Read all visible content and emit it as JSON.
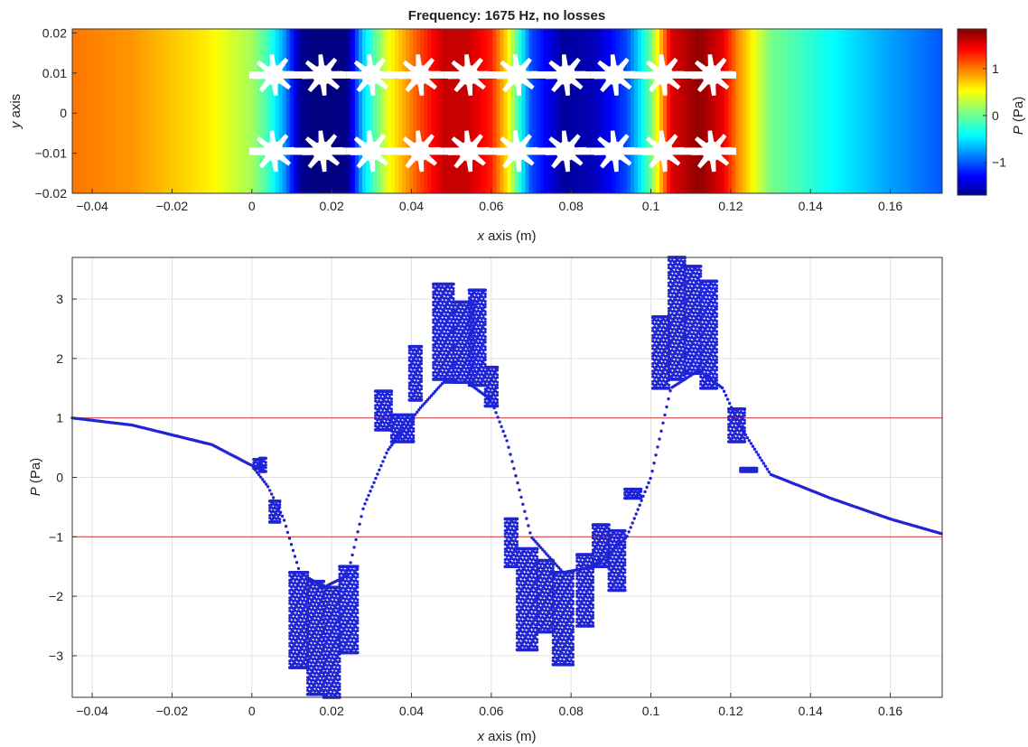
{
  "chart_data": [
    {
      "type": "heatmap",
      "title": "Frequency: 1675 Hz, no losses",
      "xlabel_var": "x",
      "xlabel_rest": " axis (m)",
      "ylabel_var": "y",
      "ylabel_rest": " axis",
      "xlim": [
        -0.045,
        0.173
      ],
      "ylim": [
        -0.02,
        0.021
      ],
      "xticks": [
        -0.04,
        -0.02,
        0,
        0.02,
        0.04,
        0.06,
        0.08,
        0.1,
        0.12,
        0.14,
        0.16
      ],
      "xtick_labels": [
        "−0.04",
        "−0.02",
        "0",
        "0.02",
        "0.04",
        "0.06",
        "0.08",
        "0.1",
        "0.12",
        "0.14",
        "0.16"
      ],
      "yticks": [
        -0.02,
        -0.01,
        0,
        0.01,
        0.02
      ],
      "ytick_labels": [
        "−0.02",
        "−0.01",
        "0",
        "0.01",
        "0.02"
      ],
      "colorbar": {
        "label_var": "P",
        "label_rest": " (Pa)",
        "range": [
          -1.7,
          1.85
        ],
        "ticks": [
          -1,
          0,
          1
        ],
        "tick_labels": [
          "−1",
          "0",
          "1"
        ],
        "colormap": "jet"
      },
      "field": {
        "scatterer_region_x": [
          0,
          0.128
        ],
        "scatterer_centers_x": [
          0.0055,
          0.0177,
          0.0299,
          0.0421,
          0.0543,
          0.0665,
          0.0787,
          0.0909,
          0.1031,
          0.1153
        ],
        "scatterer_centers_y": [
          0.0095,
          -0.0095
        ],
        "cell_mean_pressure": [
          0.1,
          -1.8,
          -1.9,
          0.9,
          1.7,
          1.6,
          -1.6,
          -1.5,
          1.6,
          1.8
        ]
      }
    },
    {
      "type": "scatter",
      "xlabel_var": "x",
      "xlabel_rest": " axis (m)",
      "ylabel_var": "P",
      "ylabel_rest": " (Pa)",
      "xlim": [
        -0.045,
        0.173
      ],
      "ylim": [
        -3.7,
        3.7
      ],
      "xticks": [
        -0.04,
        -0.02,
        0,
        0.02,
        0.04,
        0.06,
        0.08,
        0.1,
        0.12,
        0.14,
        0.16
      ],
      "xtick_labels": [
        "−0.04",
        "−0.02",
        "0",
        "0.02",
        "0.04",
        "0.06",
        "0.08",
        "0.1",
        "0.12",
        "0.14",
        "0.16"
      ],
      "yticks": [
        -3,
        -2,
        -1,
        0,
        1,
        2,
        3
      ],
      "ytick_labels": [
        "−3",
        "−2",
        "−1",
        "0",
        "1",
        "2",
        "3"
      ],
      "grid": true,
      "reference_lines": [
        {
          "y": 1,
          "color": "#d24b4b"
        },
        {
          "y": -1,
          "color": "#d24b4b"
        }
      ],
      "marker_color": "#1f24d6",
      "envelope": {
        "x": [
          -0.045,
          -0.03,
          -0.01,
          0.0,
          0.004,
          0.008,
          0.012,
          0.018,
          0.024,
          0.028,
          0.034,
          0.042,
          0.048,
          0.054,
          0.06,
          0.064,
          0.07,
          0.078,
          0.086,
          0.094,
          0.1,
          0.105,
          0.112,
          0.118,
          0.122,
          0.13,
          0.145,
          0.16,
          0.173
        ],
        "y": [
          1.0,
          0.88,
          0.55,
          0.2,
          -0.15,
          -0.7,
          -1.6,
          -1.85,
          -1.65,
          -0.5,
          0.45,
          1.15,
          1.6,
          1.6,
          1.3,
          0.6,
          -1.0,
          -1.6,
          -1.5,
          -1.0,
          0.0,
          1.5,
          1.8,
          1.5,
          0.9,
          0.05,
          -0.35,
          -0.7,
          -0.95
        ]
      },
      "point_clusters": [
        {
          "x": [
            0.0005,
            0.0025
          ],
          "y": [
            0.15,
            0.3
          ]
        },
        {
          "x": [
            0.002,
            0.0035
          ],
          "y": [
            0.1,
            0.32
          ]
        },
        {
          "x": [
            0.0045,
            0.007
          ],
          "y": [
            -0.75,
            -0.4
          ]
        },
        {
          "x": [
            0.0095,
            0.014
          ],
          "y": [
            -3.2,
            -1.6
          ]
        },
        {
          "x": [
            0.014,
            0.018
          ],
          "y": [
            -3.65,
            -1.75
          ]
        },
        {
          "x": [
            0.018,
            0.022
          ],
          "y": [
            -3.7,
            -1.85
          ]
        },
        {
          "x": [
            0.022,
            0.0265
          ],
          "y": [
            -2.95,
            -1.5
          ]
        },
        {
          "x": [
            0.031,
            0.035
          ],
          "y": [
            0.8,
            1.45
          ]
        },
        {
          "x": [
            0.035,
            0.0405
          ],
          "y": [
            0.6,
            1.05
          ]
        },
        {
          "x": [
            0.0395,
            0.0425
          ],
          "y": [
            1.3,
            2.2
          ]
        },
        {
          "x": [
            0.0455,
            0.0505
          ],
          "y": [
            1.65,
            3.25
          ]
        },
        {
          "x": [
            0.0505,
            0.0555
          ],
          "y": [
            1.6,
            2.95
          ]
        },
        {
          "x": [
            0.0545,
            0.0585
          ],
          "y": [
            1.55,
            3.15
          ]
        },
        {
          "x": [
            0.0585,
            0.0615
          ],
          "y": [
            1.2,
            1.85
          ]
        },
        {
          "x": [
            0.0635,
            0.0665
          ],
          "y": [
            -1.5,
            -0.7
          ]
        },
        {
          "x": [
            0.0665,
            0.0715
          ],
          "y": [
            -2.9,
            -1.2
          ]
        },
        {
          "x": [
            0.0715,
            0.0755
          ],
          "y": [
            -2.6,
            -1.4
          ]
        },
        {
          "x": [
            0.0755,
            0.0805
          ],
          "y": [
            -3.15,
            -1.6
          ]
        },
        {
          "x": [
            0.0815,
            0.0855
          ],
          "y": [
            -2.5,
            -1.3
          ]
        },
        {
          "x": [
            0.0855,
            0.0895
          ],
          "y": [
            -1.5,
            -0.8
          ]
        },
        {
          "x": [
            0.0895,
            0.0935
          ],
          "y": [
            -1.9,
            -0.9
          ]
        },
        {
          "x": [
            0.0935,
            0.0975
          ],
          "y": [
            -0.35,
            -0.2
          ]
        },
        {
          "x": [
            0.1005,
            0.1045
          ],
          "y": [
            1.5,
            2.7
          ]
        },
        {
          "x": [
            0.1045,
            0.1085
          ],
          "y": [
            1.65,
            3.7
          ]
        },
        {
          "x": [
            0.1085,
            0.1125
          ],
          "y": [
            1.75,
            3.55
          ]
        },
        {
          "x": [
            0.1125,
            0.1165
          ],
          "y": [
            1.5,
            3.3
          ]
        },
        {
          "x": [
            0.1195,
            0.1235
          ],
          "y": [
            0.6,
            1.15
          ]
        },
        {
          "x": [
            0.1225,
            0.1265
          ],
          "y": [
            0.1,
            0.15
          ]
        }
      ]
    }
  ]
}
